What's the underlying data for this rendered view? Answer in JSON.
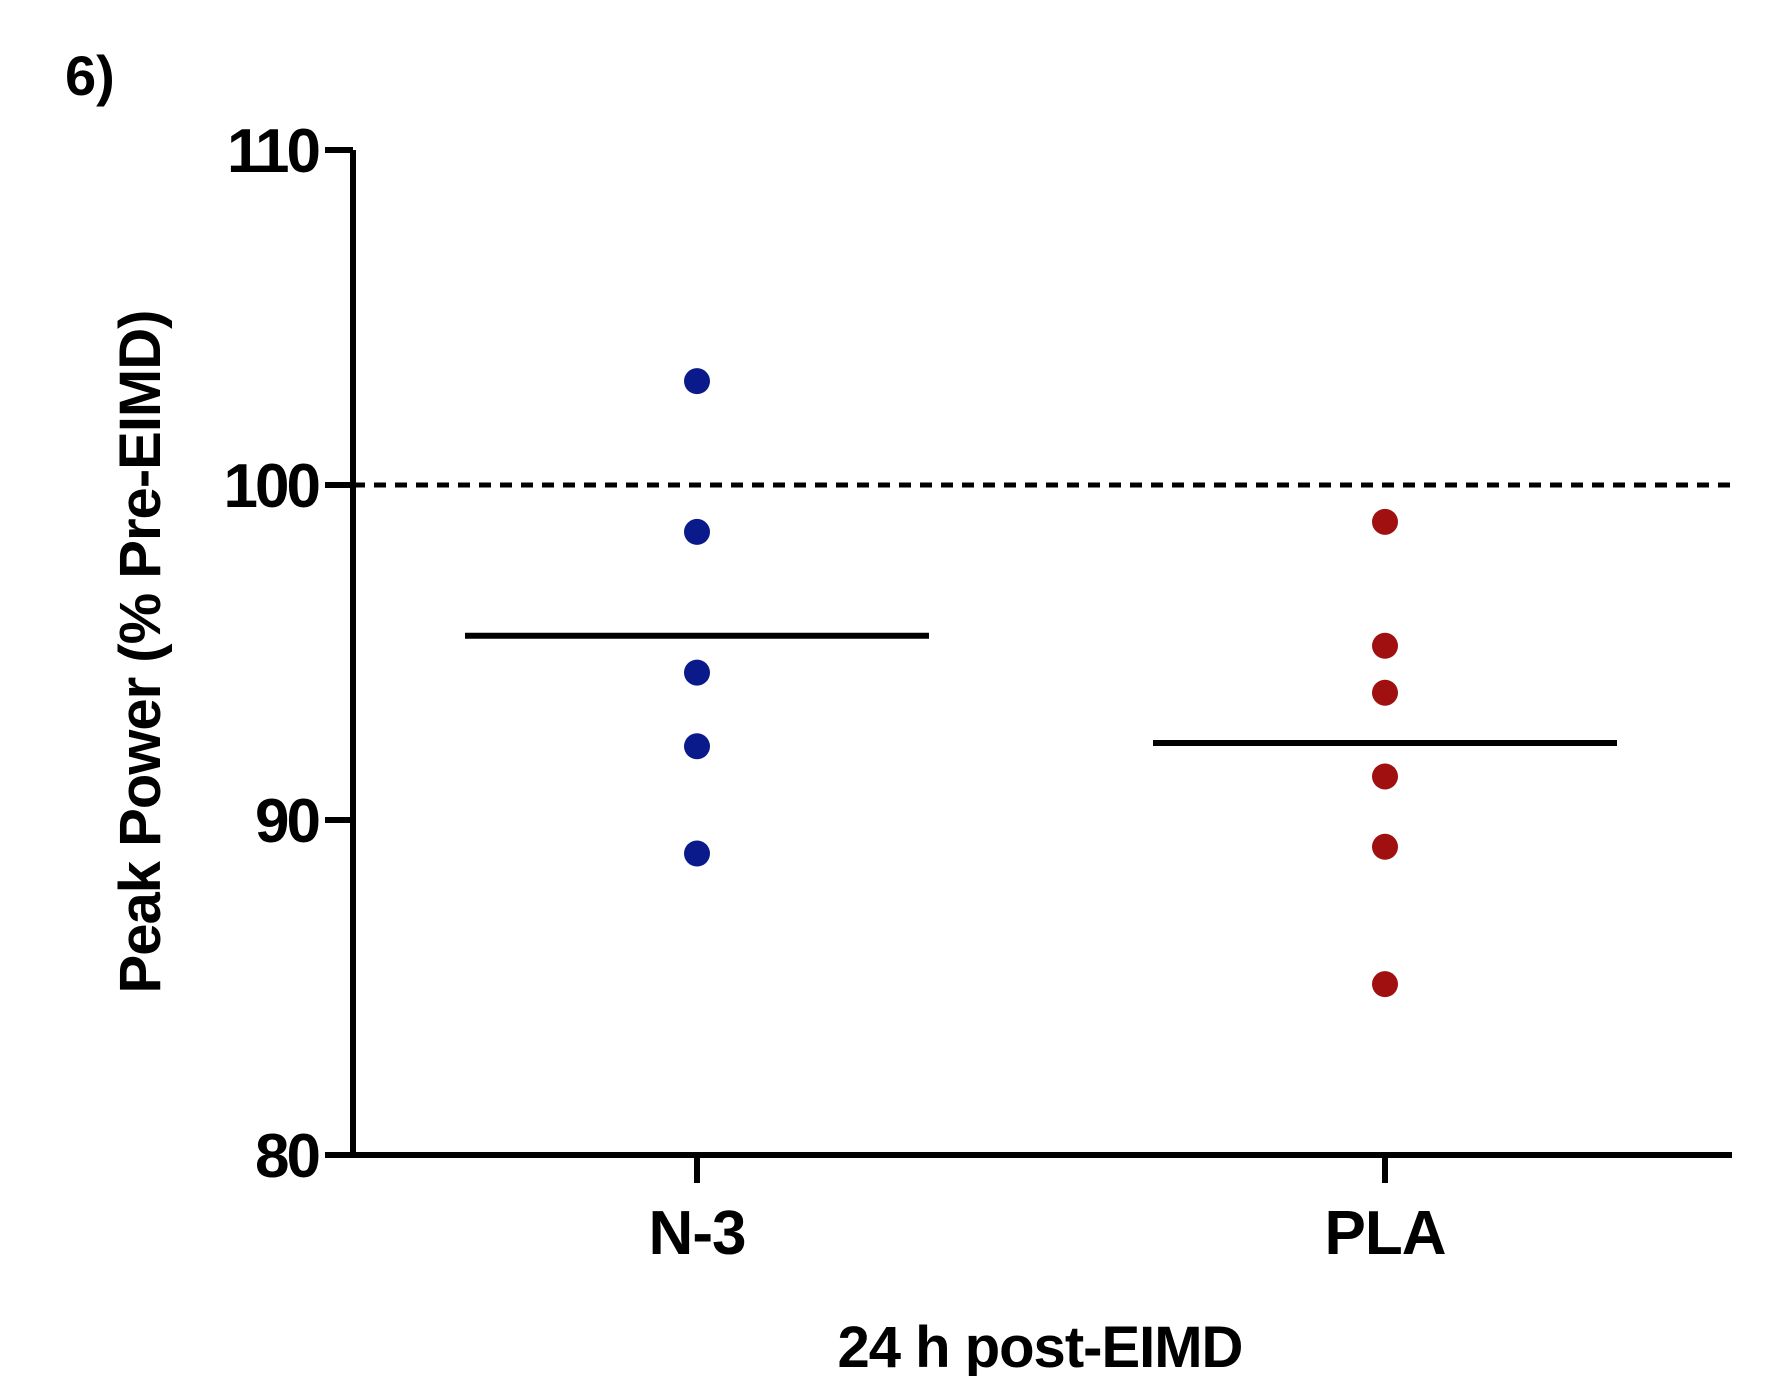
{
  "panel_label": "6)",
  "chart_data": {
    "type": "scatter",
    "xlabel": "24 h post-EIMD",
    "ylabel": "Peak Power (% Pre-EIMD)",
    "ylim": [
      80,
      110
    ],
    "yticks": [
      80,
      90,
      100,
      110
    ],
    "ytick_labels": [
      "80",
      "90",
      "100",
      "110"
    ],
    "categories": [
      "N-3",
      "PLA"
    ],
    "grid": false,
    "reference_line": {
      "y": 100,
      "style": "dashed"
    },
    "series": [
      {
        "category": "N-3",
        "color": "#0a1a8a",
        "values": [
          103.1,
          98.6,
          94.4,
          92.2,
          89.0
        ],
        "mean": 95.5
      },
      {
        "category": "PLA",
        "color": "#a01010",
        "values": [
          98.9,
          95.2,
          93.8,
          91.3,
          89.2,
          85.1
        ],
        "mean": 92.3
      }
    ]
  }
}
